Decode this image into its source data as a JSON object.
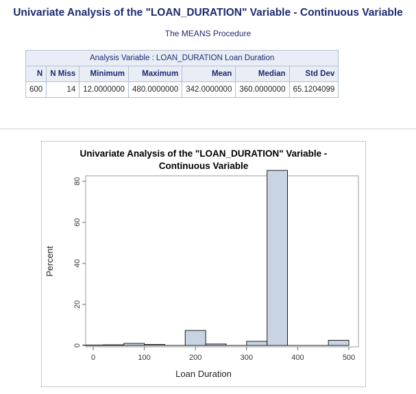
{
  "page": {
    "title": "Univariate Analysis of the \"LOAN_DURATION\" Variable - Continuous Variable",
    "procedure": "The MEANS Procedure"
  },
  "means_table": {
    "caption": "Analysis Variable : LOAN_DURATION Loan Duration",
    "headers": [
      "N",
      "N Miss",
      "Minimum",
      "Maximum",
      "Mean",
      "Median",
      "Std Dev"
    ],
    "row": [
      "600",
      "14",
      "12.0000000",
      "480.0000000",
      "342.0000000",
      "360.0000000",
      "65.1204099"
    ]
  },
  "chart_data": {
    "type": "bar",
    "title_lines": [
      "Univariate Analysis of the \"LOAN_DURATION\" Variable -",
      "Continuous Variable"
    ],
    "xlabel": "Loan Duration",
    "ylabel": "Percent",
    "xlim": [
      -20,
      510
    ],
    "ylim": [
      0,
      88
    ],
    "xticks": [
      0,
      100,
      200,
      300,
      400,
      500
    ],
    "yticks": [
      0,
      20,
      40,
      60,
      80
    ],
    "bin_width": 40,
    "bins": [
      {
        "start": -20,
        "value": 0.2
      },
      {
        "start": 20,
        "value": 0.3
      },
      {
        "start": 60,
        "value": 1.0
      },
      {
        "start": 100,
        "value": 0.5
      },
      {
        "start": 140,
        "value": 0.0
      },
      {
        "start": 180,
        "value": 7.3
      },
      {
        "start": 220,
        "value": 0.7
      },
      {
        "start": 260,
        "value": 0.0
      },
      {
        "start": 300,
        "value": 2.0
      },
      {
        "start": 340,
        "value": 85.3
      },
      {
        "start": 380,
        "value": 0.0
      },
      {
        "start": 420,
        "value": 0.0
      },
      {
        "start": 460,
        "value": 2.5
      }
    ],
    "colors": {
      "bar_fill": "#c8d3e3",
      "bar_stroke": "#1c1c1c",
      "axis": "#666666"
    }
  }
}
